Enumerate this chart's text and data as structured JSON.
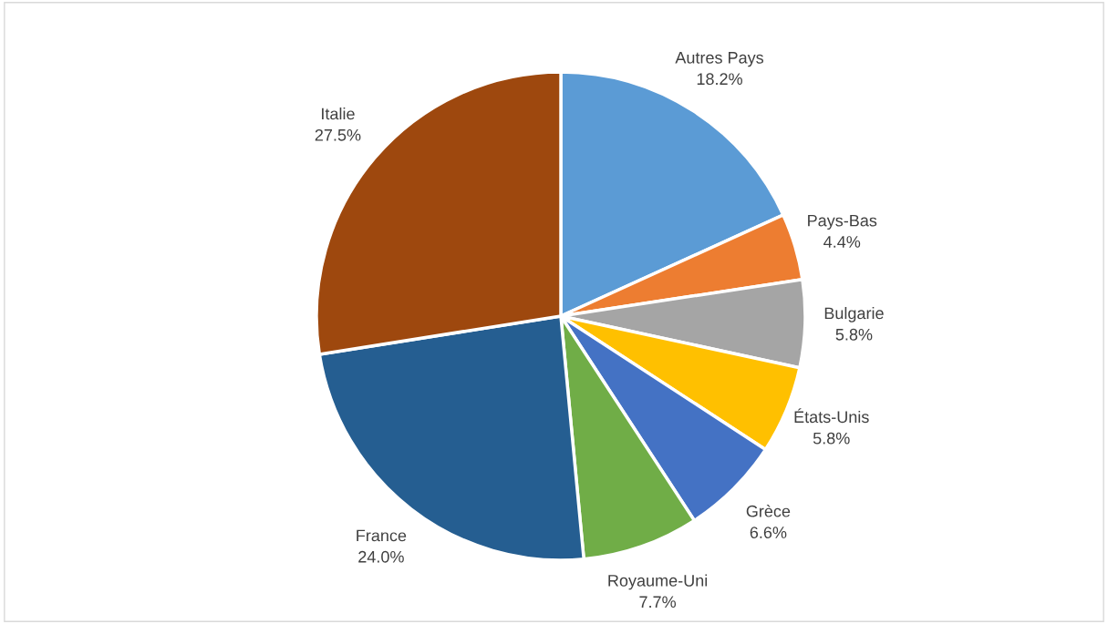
{
  "chart_data": {
    "type": "pie",
    "categories": [
      "Autres Pays",
      "Pays-Bas",
      "Bulgarie",
      "États-Unis",
      "Grèce",
      "Royaume-Uni",
      "France",
      "Italie"
    ],
    "values": [
      18.2,
      4.4,
      5.8,
      5.8,
      6.6,
      7.7,
      24.0,
      27.5
    ],
    "value_labels": [
      "18.2%",
      "4.4%",
      "5.8%",
      "5.8%",
      "6.6%",
      "7.7%",
      "24.0%",
      "27.5%"
    ],
    "colors": [
      "#5b9bd5",
      "#ed7d31",
      "#a5a5a5",
      "#ffc000",
      "#4472c4",
      "#70ad47",
      "#255e91",
      "#9e480e"
    ],
    "legend": false
  }
}
